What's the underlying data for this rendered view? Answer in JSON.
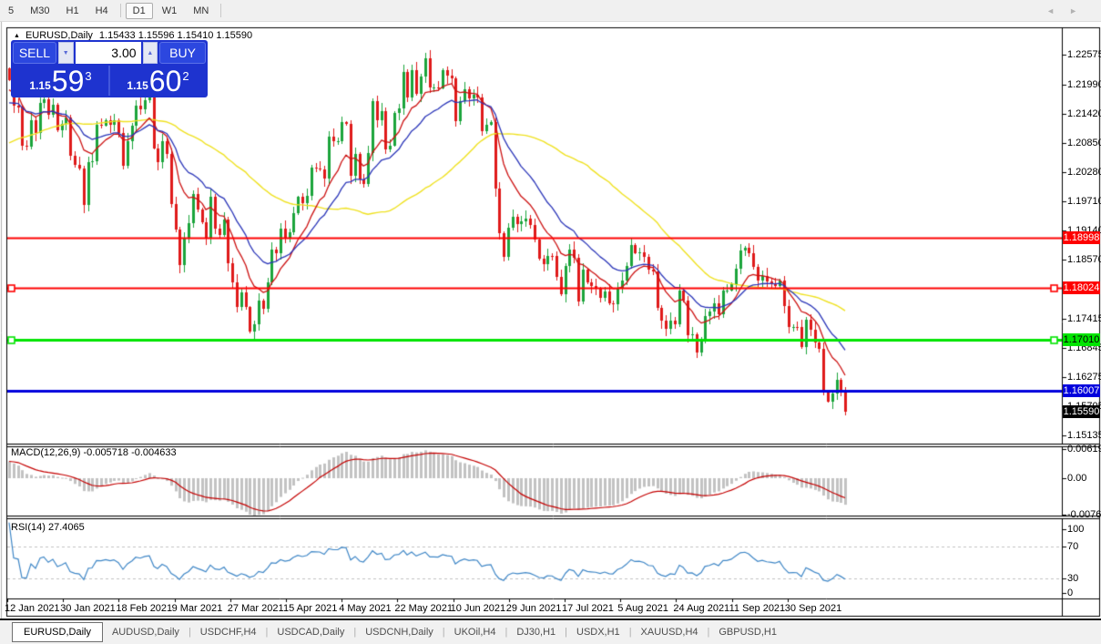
{
  "toolbar": {
    "timeframes": [
      {
        "label": "5",
        "active": false
      },
      {
        "label": "M30",
        "active": false
      },
      {
        "label": "H1",
        "active": false
      },
      {
        "label": "H4",
        "active": false
      },
      {
        "label": "D1",
        "active": true
      },
      {
        "label": "W1",
        "active": false
      },
      {
        "label": "MN",
        "active": false
      }
    ]
  },
  "icons": {
    "collapse": "▲",
    "spinner_up": "▲",
    "spinner_down": "▼",
    "tabs_left": "◄",
    "tabs_right": "►"
  },
  "chart": {
    "title": {
      "symbol": "EURUSD,Daily",
      "ohlc": "1.15433 1.15596 1.15410 1.15590"
    },
    "trade_panel": {
      "sell_label": "SELL",
      "buy_label": "BUY",
      "volume": "3.00",
      "sell": {
        "small": "1.15",
        "big": "59",
        "sup": "3"
      },
      "buy": {
        "small": "1.15",
        "big": "60",
        "sup": "2"
      }
    },
    "axis_ticks": [
      {
        "label": "1.22575",
        "price": 1.22575
      },
      {
        "label": "1.21990",
        "price": 1.2199
      },
      {
        "label": "1.21420",
        "price": 1.2142
      },
      {
        "label": "1.20850",
        "price": 1.2085
      },
      {
        "label": "1.20280",
        "price": 1.2028
      },
      {
        "label": "1.19710",
        "price": 1.1971
      },
      {
        "label": "1.19140",
        "price": 1.1914
      },
      {
        "label": "1.18570",
        "price": 1.1857
      },
      {
        "label": "1.17415",
        "price": 1.17415
      },
      {
        "label": "1.16845",
        "price": 1.16845
      },
      {
        "label": "1.16275",
        "price": 1.16275
      },
      {
        "label": "1.15705",
        "price": 1.15705
      },
      {
        "label": "1.15135",
        "price": 1.15135
      }
    ],
    "hlines": [
      {
        "label": "1.18998",
        "price": 1.18998,
        "color": "#FE0000",
        "text_color": "#FFFFFF",
        "width": 2,
        "handles": false
      },
      {
        "label": "1.18024",
        "price": 1.18024,
        "color": "#FE0000",
        "text_color": "#FFFFFF",
        "width": 2,
        "handles": true
      },
      {
        "label": "1.17010",
        "price": 1.1701,
        "color": "#00E400",
        "text_color": "#000000",
        "width": 3,
        "handles": true
      },
      {
        "label": "1.16007",
        "price": 1.16007,
        "color": "#0000DD",
        "text_color": "#FFFFFF",
        "width": 3,
        "handles": false
      }
    ],
    "current_price": {
      "label": "1.15590",
      "price": 1.1559,
      "color": "#000000",
      "text_color": "#FFFFFF"
    },
    "date_labels": [
      "12 Jan 2021",
      "30 Jan 2021",
      "18 Feb 2021",
      "9 Mar 2021",
      "27 Mar 2021",
      "15 Apr 2021",
      "4 May 2021",
      "22 May 2021",
      "10 Jun 2021",
      "29 Jun 2021",
      "17 Jul 2021",
      "5 Aug 2021",
      "24 Aug 2021",
      "11 Sep 2021",
      "30 Sep 2021"
    ]
  },
  "indicators": {
    "macd": {
      "title": "MACD(12,26,9)",
      "values": "-0.005718 -0.004633",
      "scale": [
        "0.006193",
        "0.00",
        "-0.007623"
      ]
    },
    "rsi": {
      "title": "RSI(14)",
      "value": "27.4065",
      "scale": [
        "100",
        "70",
        "30",
        "0"
      ],
      "levels": [
        70,
        30
      ]
    }
  },
  "tabs": [
    "EURUSD,Daily",
    "AUDUSD,Daily",
    "USDCHF,H4",
    "USDCAD,Daily",
    "USDCNH,Daily",
    "UKOil,H4",
    "DJ30,H1",
    "USDX,H1",
    "XAUUSD,H4",
    "GBPUSD,H1"
  ],
  "active_tab": "EURUSD,Daily",
  "colors": {
    "candle_up": "#1BA43B",
    "candle_down": "#DF1A1A",
    "ma_fast": "#CC1111",
    "ma_mid": "#2A35B8",
    "ma_slow": "#EFE121",
    "macd_hist": "#C2C2C2",
    "macd_signal": "#C40000",
    "rsi_line": "#3E86C6",
    "rsi_level": "#C0C0C0"
  },
  "chart_data": {
    "type": "candlestick",
    "symbol": "EURUSD",
    "timeframe": "Daily",
    "last_ohlc": {
      "open": 1.15433,
      "high": 1.15596,
      "low": 1.1541,
      "close": 1.1559
    },
    "y_axis_range": [
      1.148,
      1.229
    ],
    "x_range": [
      "12 Jan 2021",
      "6 Oct 2021"
    ],
    "horizontal_levels": [
      1.18998,
      1.18024,
      1.1701,
      1.16007
    ],
    "macd_values": {
      "main": -0.005718,
      "signal": -0.004633,
      "scale_max": 0.006193,
      "scale_min": -0.007623
    },
    "rsi_value": 27.4065,
    "closes": [
      1.2208,
      1.2158,
      1.2155,
      1.208,
      1.2077,
      1.213,
      1.2105,
      1.2163,
      1.2171,
      1.214,
      1.216,
      1.211,
      1.2122,
      1.2135,
      1.206,
      1.2043,
      1.2035,
      1.1964,
      1.2047,
      1.205,
      1.212,
      1.2119,
      1.213,
      1.212,
      1.2129,
      1.2105,
      1.204,
      1.2089,
      1.2118,
      1.2158,
      1.215,
      1.2168,
      1.2175,
      1.2075,
      1.2047,
      1.2089,
      1.2064,
      1.1966,
      1.1915,
      1.1846,
      1.19,
      1.1928,
      1.1985,
      1.1955,
      1.193,
      1.19,
      1.198,
      1.1917,
      1.1905,
      1.1935,
      1.185,
      1.1813,
      1.1765,
      1.1793,
      1.1764,
      1.1716,
      1.173,
      1.1777,
      1.176,
      1.1812,
      1.1876,
      1.187,
      1.1917,
      1.1899,
      1.1911,
      1.1948,
      1.1979,
      1.1967,
      1.1982,
      1.2037,
      1.2035,
      1.2034,
      1.2015,
      1.2098,
      1.2089,
      1.2089,
      1.2125,
      1.2122,
      1.202,
      1.2063,
      1.2014,
      1.2004,
      1.2065,
      1.2166,
      1.2129,
      1.2147,
      1.2072,
      1.208,
      1.2144,
      1.2153,
      1.2224,
      1.2174,
      1.2228,
      1.2181,
      1.2215,
      1.225,
      1.2193,
      1.2194,
      1.2192,
      1.2227,
      1.2216,
      1.2211,
      1.2127,
      1.2166,
      1.2189,
      1.2172,
      1.2179,
      1.2174,
      1.2108,
      1.2121,
      1.2126,
      1.1995,
      1.1908,
      1.1863,
      1.1919,
      1.194,
      1.1926,
      1.1931,
      1.1937,
      1.1925,
      1.1897,
      1.1858,
      1.1848,
      1.1865,
      1.1864,
      1.1823,
      1.179,
      1.1845,
      1.1876,
      1.1861,
      1.1775,
      1.1837,
      1.1812,
      1.1806,
      1.18,
      1.1782,
      1.1794,
      1.1772,
      1.177,
      1.1802,
      1.1816,
      1.1845,
      1.1886,
      1.187,
      1.1872,
      1.1863,
      1.1838,
      1.1834,
      1.1762,
      1.1738,
      1.1721,
      1.1738,
      1.173,
      1.1796,
      1.1777,
      1.171,
      1.1711,
      1.1675,
      1.1697,
      1.1746,
      1.1755,
      1.1771,
      1.1751,
      1.1796,
      1.1797,
      1.1809,
      1.184,
      1.1874,
      1.188,
      1.187,
      1.1842,
      1.1816,
      1.1825,
      1.1814,
      1.181,
      1.1805,
      1.1816,
      1.1766,
      1.1725,
      1.1726,
      1.1725,
      1.1687,
      1.174,
      1.172,
      1.1695,
      1.1683,
      1.1597,
      1.158,
      1.1595,
      1.1622,
      1.1599,
      1.1559
    ]
  }
}
